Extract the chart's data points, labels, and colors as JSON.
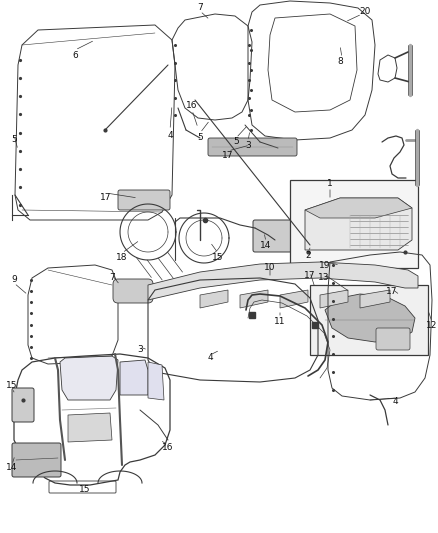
{
  "bg_color": "#ffffff",
  "fig_width": 4.38,
  "fig_height": 5.33,
  "dpi": 100,
  "gray": "#3a3a3a",
  "lgray": "#888888",
  "lw": 0.7
}
